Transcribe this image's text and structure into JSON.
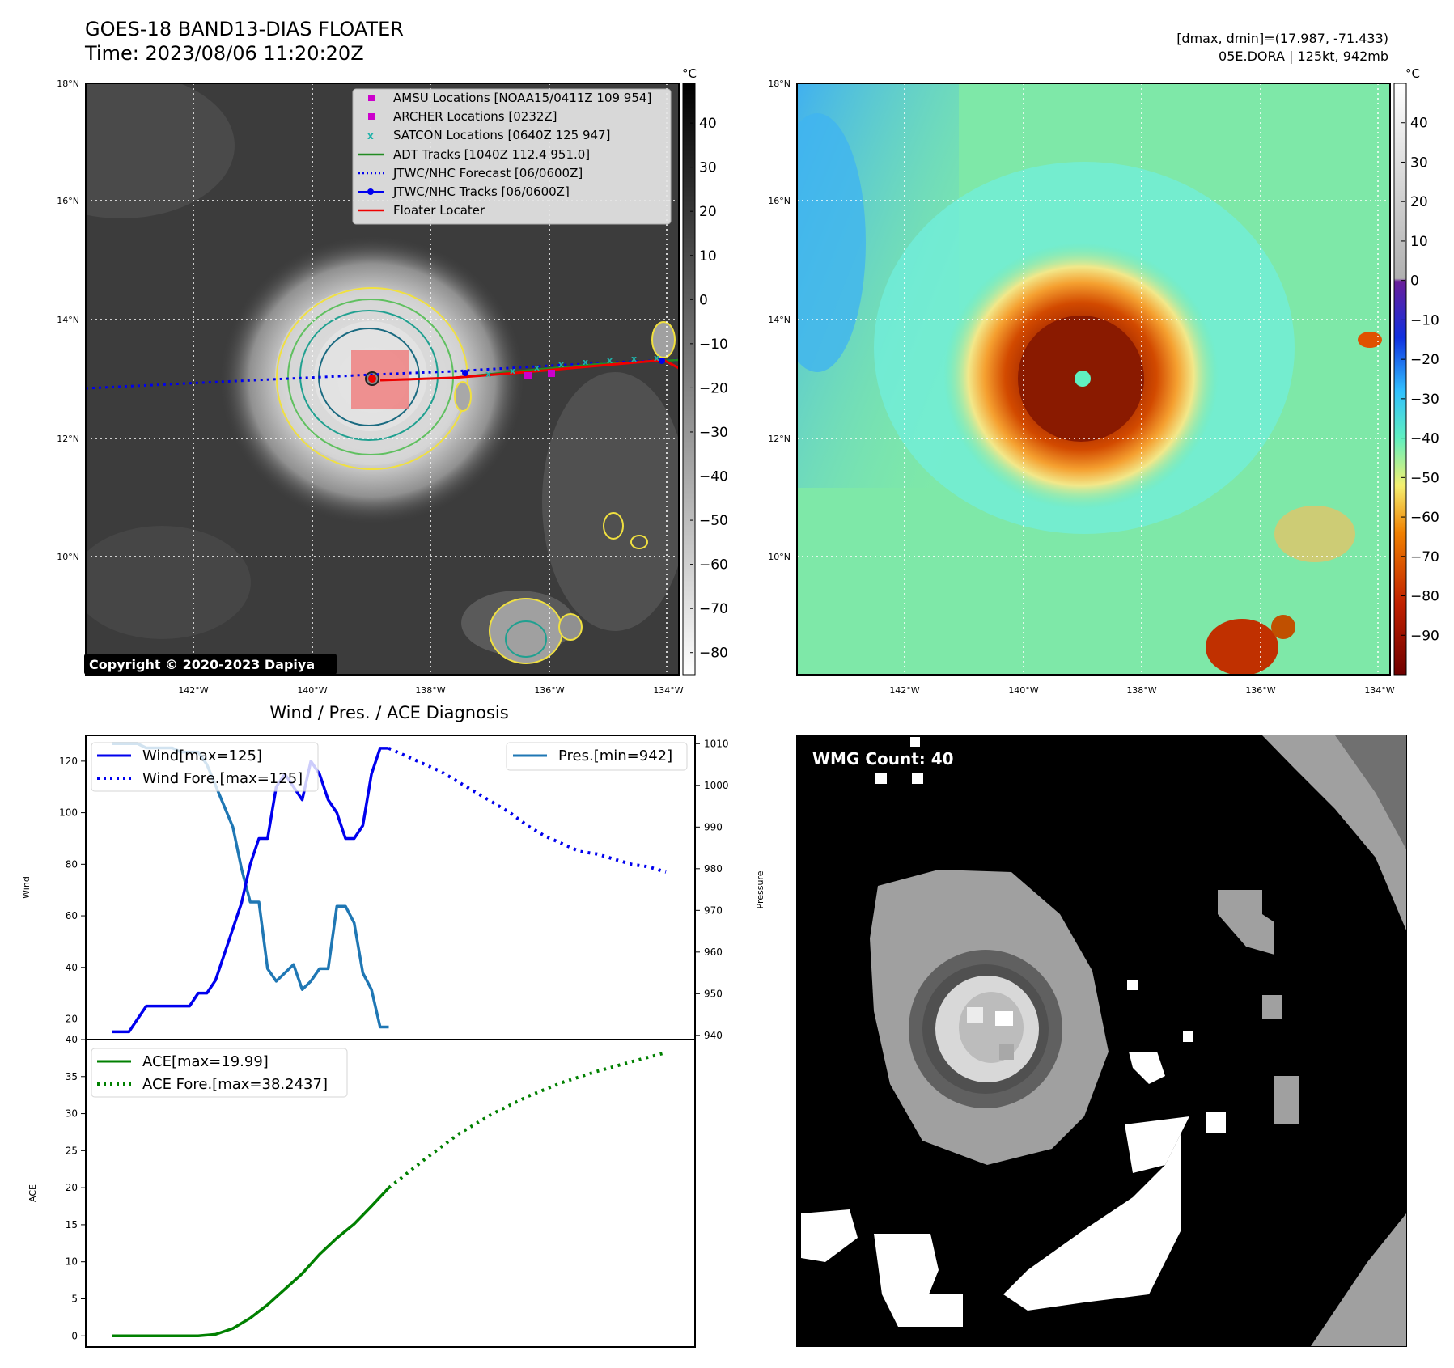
{
  "header": {
    "title_line1": "GOES-18 BAND13-DIAS FLOATER",
    "title_line2": "Time: 2023/08/06 11:20:20Z",
    "dmax_line": "[dmax, dmin]=(17.987, -71.433)",
    "storm_line": "05E.DORA | 125kt, 942mb"
  },
  "map_axes": {
    "lat_ticks": [
      "18°N",
      "16°N",
      "14°N",
      "12°N",
      "10°N"
    ],
    "lon_ticks": [
      "142°W",
      "140°W",
      "138°W",
      "136°W",
      "134°W"
    ],
    "copyright": "Copyright © 2020-2023 Dapiya"
  },
  "colorbar_gray": {
    "unit": "°C",
    "ticks": [
      "40",
      "30",
      "20",
      "10",
      "0",
      "−10",
      "−20",
      "−30",
      "−40",
      "−50",
      "−60",
      "−70",
      "−80"
    ]
  },
  "colorbar_color": {
    "unit": "°C",
    "ticks": [
      "40",
      "30",
      "20",
      "10",
      "0",
      "−10",
      "−20",
      "−30",
      "−40",
      "−50",
      "−60",
      "−70",
      "−80",
      "−90"
    ]
  },
  "legend": {
    "amsu": "AMSU Locations [NOAA15/0411Z 109 954]",
    "archer": "ARCHER Locations [0232Z]",
    "satcon": "SATCON Locations [0640Z 125 947]",
    "adt": "ADT Tracks [1040Z 112.4 951.0]",
    "forecast": "JTWC/NHC Forecast [06/0600Z]",
    "tracks": "JTWC/NHC Tracks [06/0600Z]",
    "floater": "Floater Locater"
  },
  "colors": {
    "wind": "#0000ee",
    "pressure": "#1f77b4",
    "ace": "#008000",
    "floater": "#ee0000",
    "adt": "#228B22",
    "amsu": "#cc00cc",
    "satcon": "#20b2aa"
  },
  "diag": {
    "title": "Wind / Pres. / ACE Diagnosis",
    "wind_label": "Wind",
    "pressure_label": "Pressure",
    "ace_label": "ACE",
    "legend_wind": "Wind[max=125]",
    "legend_wind_fore": "Wind Fore.[max=125]",
    "legend_pres": "Pres.[min=942]",
    "legend_ace": "ACE[max=19.99]",
    "legend_ace_fore": "ACE Fore.[max=38.2437]",
    "wind_ticks": [
      "120",
      "100",
      "80",
      "60",
      "40",
      "20"
    ],
    "pres_ticks": [
      "1010",
      "1000",
      "990",
      "980",
      "970",
      "960",
      "950",
      "940"
    ],
    "ace_ticks": [
      "40",
      "35",
      "30",
      "25",
      "20",
      "15",
      "10",
      "5",
      "0"
    ]
  },
  "wmg": {
    "label": "WMG Count: 40"
  },
  "chart_data": [
    {
      "type": "line",
      "title": "Wind / Pres. / ACE Diagnosis",
      "ylabel": "Wind",
      "ylim": [
        12,
        130
      ],
      "series": [
        {
          "name": "Wind[max=125]",
          "x": [
            0,
            1,
            2,
            3,
            4,
            5,
            6,
            7,
            8,
            9,
            10,
            11,
            12,
            13,
            14,
            15,
            16,
            17,
            18,
            19,
            20,
            21,
            22,
            23,
            24,
            25,
            26,
            27,
            28,
            29,
            30,
            31,
            32
          ],
          "values": [
            15,
            15,
            15,
            20,
            25,
            25,
            25,
            25,
            25,
            25,
            30,
            30,
            35,
            45,
            55,
            65,
            80,
            90,
            90,
            110,
            115,
            110,
            105,
            120,
            115,
            105,
            100,
            90,
            90,
            95,
            115,
            125,
            125
          ]
        },
        {
          "name": "Wind Fore.[max=125]",
          "x": [
            32,
            34,
            36,
            38,
            40,
            42,
            44,
            46,
            48,
            50,
            52,
            54,
            56,
            58,
            60,
            62,
            64
          ],
          "values": [
            125,
            122,
            119,
            116,
            112,
            108,
            104,
            100,
            95,
            91,
            88,
            85,
            84,
            82,
            80,
            79,
            77
          ]
        }
      ]
    },
    {
      "type": "line",
      "ylabel": "Pressure",
      "ylim": [
        939,
        1012
      ],
      "series": [
        {
          "name": "Pres.[min=942]",
          "x": [
            0,
            1,
            2,
            3,
            4,
            5,
            6,
            7,
            8,
            9,
            10,
            11,
            12,
            13,
            14,
            15,
            16,
            17,
            18,
            19,
            20,
            21,
            22,
            23,
            24,
            25,
            26,
            27,
            28,
            29,
            30,
            31,
            32
          ],
          "values": [
            1010,
            1010,
            1010,
            1010,
            1009,
            1009,
            1009,
            1009,
            1008,
            1008,
            1008,
            1005,
            1000,
            995,
            990,
            980,
            972,
            972,
            956,
            953,
            955,
            957,
            951,
            953,
            956,
            956,
            971,
            971,
            967,
            955,
            951,
            942,
            942
          ]
        }
      ]
    },
    {
      "type": "line",
      "ylabel": "ACE",
      "ylim": [
        -1.5,
        40
      ],
      "series": [
        {
          "name": "ACE[max=19.99]",
          "x": [
            0,
            2,
            4,
            6,
            8,
            10,
            12,
            14,
            16,
            18,
            20,
            22,
            24,
            26,
            28,
            30,
            32
          ],
          "values": [
            0,
            0,
            0,
            0,
            0,
            0,
            0.2,
            1.0,
            2.4,
            4.2,
            6.3,
            8.4,
            11.0,
            13.2,
            15.1,
            17.5,
            19.99
          ]
        },
        {
          "name": "ACE Fore.[max=38.2437]",
          "x": [
            32,
            36,
            40,
            44,
            48,
            52,
            56,
            60,
            64
          ],
          "values": [
            19.99,
            23.7,
            27.2,
            30.0,
            32.3,
            34.2,
            35.7,
            37.0,
            38.2437
          ]
        }
      ]
    }
  ]
}
